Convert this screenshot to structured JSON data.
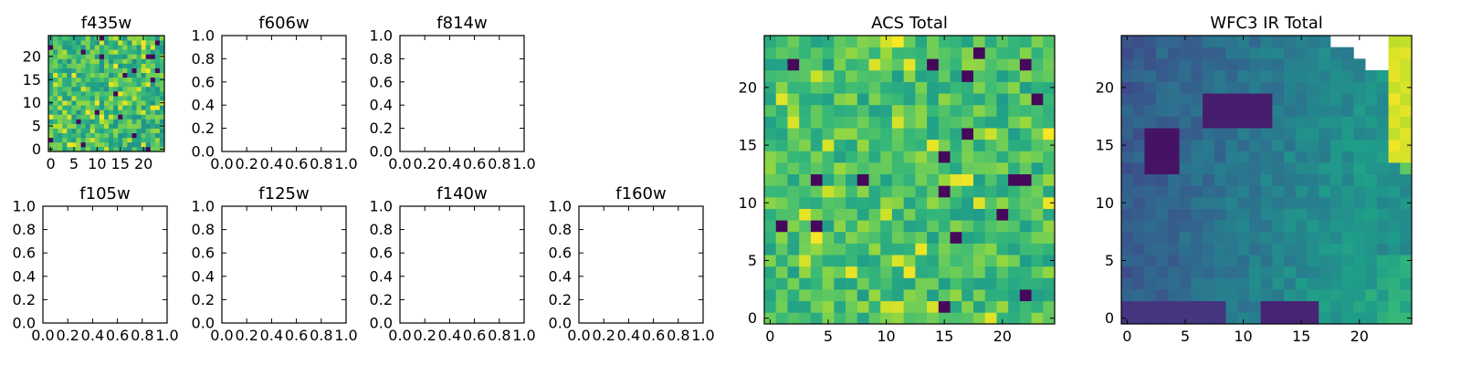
{
  "chart_data": [
    {
      "type": "heatmap",
      "title": "f435w",
      "xticks": [
        0,
        5,
        10,
        15,
        20
      ],
      "yticks": [
        0,
        5,
        10,
        15,
        20
      ],
      "xlim": [
        -0.5,
        24.5
      ],
      "ylim": [
        -0.5,
        24.5
      ],
      "grid_size": [
        25,
        25
      ],
      "colormap": "viridis"
    },
    {
      "type": "empty",
      "title": "f606w",
      "xticks": [
        "0.0",
        "0.2",
        "0.4",
        "0.6",
        "0.8",
        "1.0"
      ],
      "yticks": [
        "0.0",
        "0.2",
        "0.4",
        "0.6",
        "0.8",
        "1.0"
      ],
      "xlim": [
        0,
        1
      ],
      "ylim": [
        0,
        1
      ]
    },
    {
      "type": "empty",
      "title": "f814w",
      "xticks": [
        "0.0",
        "0.2",
        "0.4",
        "0.6",
        "0.8",
        "1.0"
      ],
      "yticks": [
        "0.0",
        "0.2",
        "0.4",
        "0.6",
        "0.8",
        "1.0"
      ],
      "xlim": [
        0,
        1
      ],
      "ylim": [
        0,
        1
      ]
    },
    {
      "type": "empty",
      "title": "f105w",
      "xticks": [
        "0.0",
        "0.2",
        "0.4",
        "0.6",
        "0.8",
        "1.0"
      ],
      "yticks": [
        "0.0",
        "0.2",
        "0.4",
        "0.6",
        "0.8",
        "1.0"
      ],
      "xlim": [
        0,
        1
      ],
      "ylim": [
        0,
        1
      ]
    },
    {
      "type": "empty",
      "title": "f125w",
      "xticks": [
        "0.0",
        "0.2",
        "0.4",
        "0.6",
        "0.8",
        "1.0"
      ],
      "yticks": [
        "0.0",
        "0.2",
        "0.4",
        "0.6",
        "0.8",
        "1.0"
      ],
      "xlim": [
        0,
        1
      ],
      "ylim": [
        0,
        1
      ]
    },
    {
      "type": "empty",
      "title": "f140w",
      "xticks": [
        "0.0",
        "0.2",
        "0.4",
        "0.6",
        "0.8",
        "1.0"
      ],
      "yticks": [
        "0.0",
        "0.2",
        "0.4",
        "0.6",
        "0.8",
        "1.0"
      ],
      "xlim": [
        0,
        1
      ],
      "ylim": [
        0,
        1
      ]
    },
    {
      "type": "empty",
      "title": "f160w",
      "xticks": [
        "0.0",
        "0.2",
        "0.4",
        "0.6",
        "0.8",
        "1.0"
      ],
      "yticks": [
        "0.0",
        "0.2",
        "0.4",
        "0.6",
        "0.8",
        "1.0"
      ],
      "xlim": [
        0,
        1
      ],
      "ylim": [
        0,
        1
      ]
    },
    {
      "type": "heatmap",
      "title": "ACS Total",
      "xticks": [
        0,
        5,
        10,
        15,
        20
      ],
      "yticks": [
        0,
        5,
        10,
        15,
        20
      ],
      "xlim": [
        -0.5,
        24.5
      ],
      "ylim": [
        -0.5,
        24.5
      ],
      "grid_size": [
        25,
        25
      ],
      "colormap": "viridis"
    },
    {
      "type": "heatmap",
      "title": "WFC3 IR Total",
      "xticks": [
        0,
        5,
        10,
        15,
        20
      ],
      "yticks": [
        0,
        5,
        10,
        15,
        20
      ],
      "xlim": [
        -0.5,
        24.5
      ],
      "ylim": [
        -0.5,
        24.5
      ],
      "grid_size": [
        25,
        25
      ],
      "colormap": "viridis",
      "masked_region": "upper-right"
    }
  ]
}
